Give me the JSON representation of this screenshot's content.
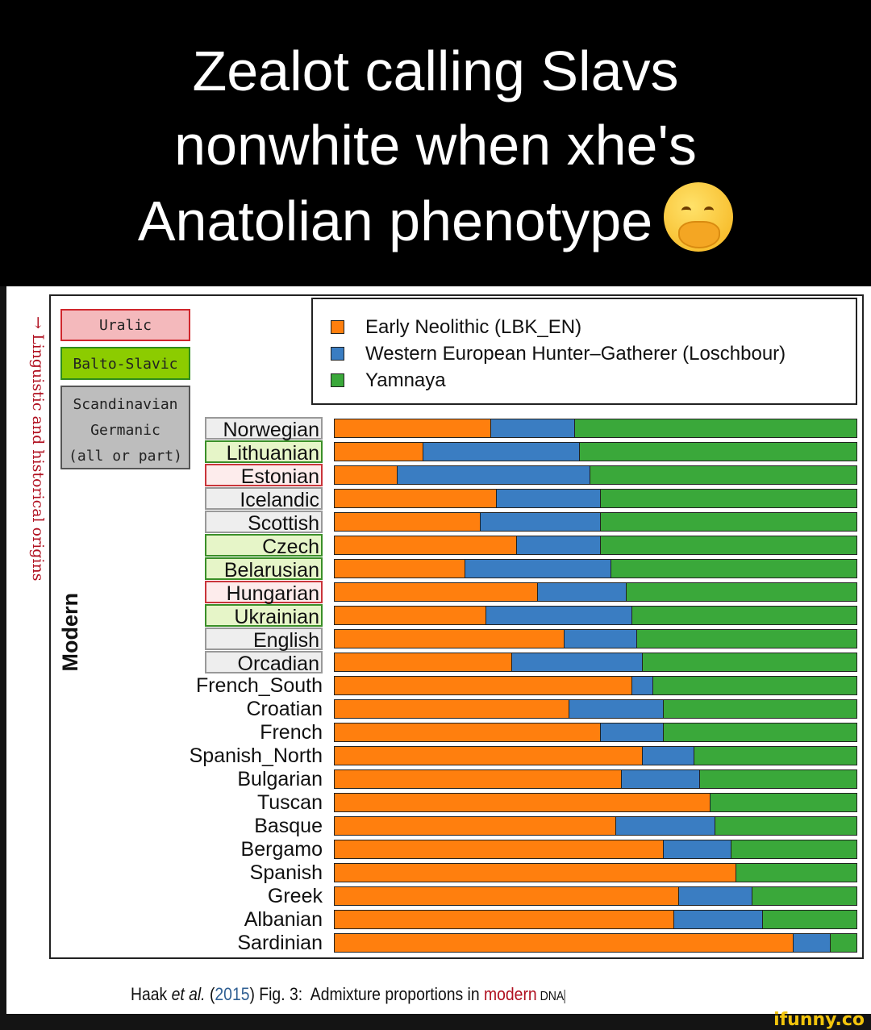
{
  "meme_title": [
    "Zealot calling Slavs",
    "nonwhite when xhe's",
    "Anatolian phenotype"
  ],
  "emoji": "face-with-hand-over-mouth",
  "watermark": "ifunny.co",
  "chart_data": {
    "type": "bar",
    "orientation": "horizontal",
    "stacked": true,
    "side_label": "→ Linguistic and historical origins",
    "group_label": "Modern",
    "group_legend": [
      {
        "label": "Uralic",
        "color": "#f4b9bc"
      },
      {
        "label": "Balto-Slavic",
        "color": "#8ccc00"
      },
      {
        "label": "Scandinavian Germanic (all or part)",
        "lines": [
          "Scandinavian",
          "Germanic",
          "(all or part)"
        ],
        "color": "#bdbdbd"
      }
    ],
    "legend_placement": "top-right",
    "series_colors": [
      "#ff7f0e",
      "#3a7dc2",
      "#3aa83a"
    ],
    "series_names": [
      "Early Neolithic (LBK_EN)",
      "Western European Hunter–Gatherer (Loschbour)",
      "Yamnaya"
    ],
    "categories": [
      "Norwegian",
      "Lithuanian",
      "Estonian",
      "Icelandic",
      "Scottish",
      "Czech",
      "Belarusian",
      "Hungarian",
      "Ukrainian",
      "English",
      "Orcadian",
      "French_South",
      "Croatian",
      "French",
      "Spanish_North",
      "Bulgarian",
      "Tuscan",
      "Basque",
      "Bergamo",
      "Spanish",
      "Greek",
      "Albanian",
      "Sardinian"
    ],
    "category_groups": [
      "germanic",
      "balto",
      "uralic",
      "germanic",
      "germanic",
      "balto",
      "balto",
      "uralic",
      "balto",
      "germanic",
      "germanic",
      "",
      "",
      "",
      "",
      "",
      "",
      "",
      "",
      "",
      "",
      "",
      ""
    ],
    "series": [
      {
        "name": "Early Neolithic (LBK_EN)",
        "values": [
          0.3,
          0.17,
          0.12,
          0.31,
          0.28,
          0.35,
          0.25,
          0.39,
          0.29,
          0.44,
          0.34,
          0.57,
          0.45,
          0.51,
          0.59,
          0.55,
          0.72,
          0.54,
          0.63,
          0.77,
          0.66,
          0.65,
          0.88
        ]
      },
      {
        "name": "Western European Hunter–Gatherer (Loschbour)",
        "values": [
          0.16,
          0.3,
          0.37,
          0.2,
          0.23,
          0.16,
          0.28,
          0.17,
          0.28,
          0.14,
          0.25,
          0.04,
          0.18,
          0.12,
          0.1,
          0.15,
          0.0,
          0.19,
          0.13,
          0.0,
          0.14,
          0.17,
          0.07
        ]
      },
      {
        "name": "Yamnaya",
        "values": [
          0.54,
          0.53,
          0.51,
          0.49,
          0.49,
          0.49,
          0.47,
          0.44,
          0.43,
          0.42,
          0.41,
          0.39,
          0.37,
          0.37,
          0.31,
          0.3,
          0.28,
          0.27,
          0.24,
          0.23,
          0.2,
          0.18,
          0.05
        ]
      }
    ],
    "xlim": [
      0,
      1
    ]
  },
  "caption": {
    "author": "Haak",
    "etal": "et al.",
    "open": "(",
    "year": "2015",
    "close": ")",
    "rest": " Fig. 3:  Admixture proportions in ",
    "modern": "modern",
    "dna": " DNA"
  }
}
